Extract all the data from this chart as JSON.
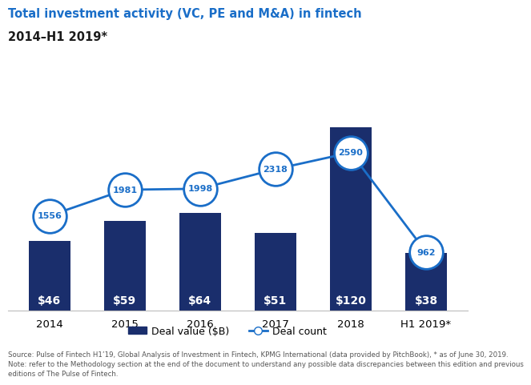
{
  "title_line1": "Total investment activity (VC, PE and M&A) in fintech",
  "title_line2": "2014–H1 2019*",
  "categories": [
    "2014",
    "2015",
    "2016",
    "2017",
    "2018",
    "H1 2019*"
  ],
  "bar_values": [
    46,
    59,
    64,
    51,
    120,
    38
  ],
  "bar_labels": [
    "$46",
    "$59",
    "$64",
    "$51",
    "$120",
    "$38"
  ],
  "deal_counts": [
    1556,
    1981,
    1998,
    2318,
    2590,
    962
  ],
  "bar_color": "#1a2e6c",
  "line_color": "#1a6ec8",
  "circle_facecolor": "#ffffff",
  "circle_edgecolor": "#1a6ec8",
  "bar_label_color": "#ffffff",
  "title_color1": "#1a6ec8",
  "title_color2": "#1a1a1a",
  "legend_label_bar": "Deal value ($B)",
  "legend_label_line": "Deal count",
  "source_text": "Source: Pulse of Fintech H1’19, Global Analysis of Investment in Fintech, KPMG International (data provided by PitchBook), * as of June 30, 2019.\nNote: refer to the Methodology section at the end of the document to understand any possible data discrepancies between this edition and previous\neditions of The Pulse of Fintech.",
  "ylim_bar": [
    0,
    140
  ],
  "ylim_line": [
    0,
    3500
  ],
  "figsize": [
    6.52,
    4.86
  ],
  "dpi": 100
}
